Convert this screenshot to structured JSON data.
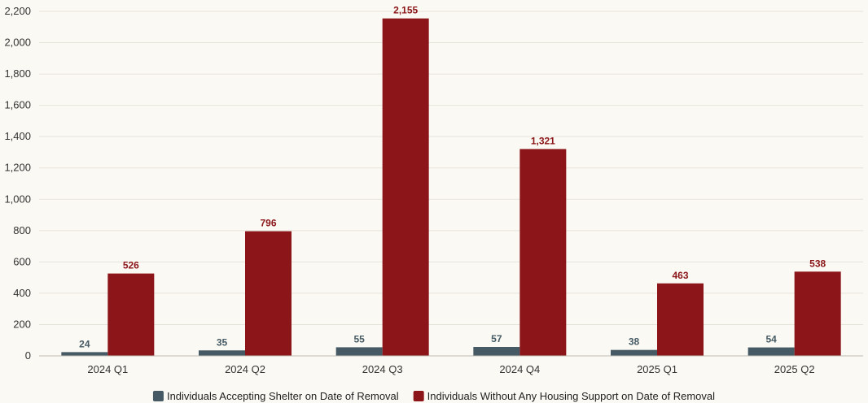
{
  "chart_data": {
    "type": "bar",
    "categories": [
      "2024 Q1",
      "2024 Q2",
      "2024 Q3",
      "2024 Q4",
      "2025 Q1",
      "2025 Q2"
    ],
    "series": [
      {
        "name": "Individuals Accepting Shelter on Date of Removal",
        "values": [
          24,
          35,
          55,
          57,
          38,
          54
        ],
        "labels": [
          "24",
          "35",
          "55",
          "57",
          "38",
          "54"
        ],
        "color": "#455a64"
      },
      {
        "name": "Individuals Without Any Housing Support on Date of Removal",
        "values": [
          526,
          796,
          2155,
          1321,
          463,
          538
        ],
        "labels": [
          "526",
          "796",
          "2,155",
          "1,321",
          "463",
          "538"
        ],
        "color": "#8b1519"
      }
    ],
    "title": "",
    "xlabel": "",
    "ylabel": "",
    "ylim": [
      0,
      2200
    ],
    "yticks": [
      0,
      200,
      400,
      600,
      800,
      1000,
      1200,
      1400,
      1600,
      1800,
      2000,
      2200
    ],
    "ytick_labels": [
      "0",
      "200",
      "400",
      "600",
      "800",
      "1,000",
      "1,200",
      "1,400",
      "1,600",
      "1,800",
      "2,000",
      "2,200"
    ],
    "grid": true,
    "legend_position": "bottom-center"
  }
}
